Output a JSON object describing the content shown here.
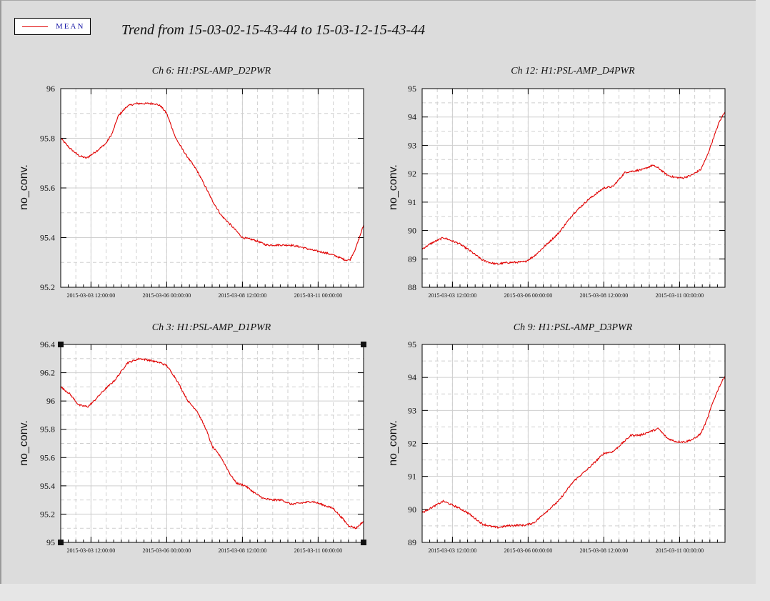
{
  "legend": {
    "label": "MEAN",
    "color": "#e00000"
  },
  "title": "Trend from 15-03-02-15-43-44 to 15-03-12-15-43-44",
  "chart_data": [
    {
      "type": "line",
      "title": "Ch 6: H1:PSL-AMP_D2PWR",
      "ylabel": "no_conv.",
      "ylim": [
        95.2,
        96.0
      ],
      "yticks": [
        "95.2",
        "95.4",
        "95.6",
        "95.8",
        "96"
      ],
      "xtick_labels": [
        "2015-03-03 12:00:00",
        "2015-03-06 00:00:00",
        "2015-03-08 12:00:00",
        "2015-03-11 00:00:00"
      ],
      "xtick_days": [
        1.0,
        3.5,
        6.0,
        8.5
      ],
      "grid": true,
      "series": [
        {
          "name": "MEAN",
          "color": "#e00000",
          "x": [
            0,
            0.3,
            0.6,
            0.85,
            1.2,
            1.5,
            1.7,
            1.9,
            2.2,
            2.5,
            2.8,
            3.1,
            3.3,
            3.5,
            3.8,
            4.1,
            4.5,
            4.8,
            5.0,
            5.3,
            5.7,
            6.0,
            6.4,
            6.8,
            7.2,
            7.6,
            8.0,
            8.3,
            8.7,
            9.0,
            9.2,
            9.4,
            9.55,
            9.75,
            10.0
          ],
          "y": [
            95.8,
            95.76,
            95.73,
            95.72,
            95.75,
            95.78,
            95.82,
            95.89,
            95.93,
            95.94,
            95.94,
            95.94,
            95.93,
            95.9,
            95.8,
            95.74,
            95.67,
            95.6,
            95.55,
            95.49,
            95.44,
            95.4,
            95.39,
            95.37,
            95.37,
            95.37,
            95.36,
            95.35,
            95.34,
            95.33,
            95.32,
            95.31,
            95.31,
            95.36,
            95.45
          ]
        }
      ]
    },
    {
      "type": "line",
      "title": "Ch 12: H1:PSL-AMP_D4PWR",
      "ylabel": "no_conv.",
      "ylim": [
        88,
        95
      ],
      "yticks": [
        "88",
        "89",
        "90",
        "91",
        "92",
        "93",
        "94",
        "95"
      ],
      "xtick_labels": [
        "2015-03-03 12:00:00",
        "2015-03-06 00:00:00",
        "2015-03-08 12:00:00",
        "2015-03-11 00:00:00"
      ],
      "xtick_days": [
        1.0,
        3.5,
        6.0,
        8.5
      ],
      "grid": true,
      "series": [
        {
          "name": "MEAN",
          "color": "#e00000",
          "x": [
            0,
            0.3,
            0.7,
            1.2,
            1.5,
            2.0,
            2.3,
            2.5,
            2.8,
            3.1,
            3.4,
            3.7,
            4.0,
            4.5,
            5.0,
            5.5,
            6.0,
            6.3,
            6.7,
            7.0,
            7.3,
            7.6,
            7.8,
            8.1,
            8.3,
            8.6,
            8.9,
            9.2,
            9.4,
            9.6,
            9.8,
            10.0
          ],
          "y": [
            89.35,
            89.55,
            89.75,
            89.55,
            89.35,
            88.95,
            88.85,
            88.82,
            88.87,
            88.88,
            88.9,
            89.1,
            89.4,
            89.9,
            90.6,
            91.1,
            91.5,
            91.55,
            92.05,
            92.1,
            92.15,
            92.3,
            92.2,
            91.95,
            91.88,
            91.85,
            91.95,
            92.15,
            92.6,
            93.2,
            93.8,
            94.2
          ]
        }
      ]
    },
    {
      "type": "line",
      "title": "Ch 3: H1:PSL-AMP_D1PWR",
      "ylabel": "no_conv.",
      "ylim": [
        95.0,
        96.4
      ],
      "yticks": [
        "95",
        "95.2",
        "95.4",
        "95.6",
        "95.8",
        "96",
        "96.2",
        "96.4"
      ],
      "xtick_labels": [
        "2015-03-03 12:00:00",
        "2015-03-06 00:00:00",
        "2015-03-08 12:00:00",
        "2015-03-11 00:00:00"
      ],
      "xtick_days": [
        1.0,
        3.5,
        6.0,
        8.5
      ],
      "grid": true,
      "series": [
        {
          "name": "MEAN",
          "color": "#e00000",
          "x": [
            0,
            0.3,
            0.6,
            0.9,
            1.1,
            1.4,
            1.8,
            2.2,
            2.6,
            2.9,
            3.1,
            3.3,
            3.5,
            3.8,
            4.0,
            4.2,
            4.5,
            4.8,
            5.0,
            5.3,
            5.6,
            5.8,
            6.1,
            6.4,
            6.7,
            7.0,
            7.3,
            7.6,
            8.0,
            8.3,
            8.6,
            9.0,
            9.3,
            9.5,
            9.75,
            10.0
          ],
          "y": [
            96.1,
            96.05,
            95.97,
            95.96,
            96.0,
            96.07,
            96.15,
            96.27,
            96.3,
            96.29,
            96.28,
            96.27,
            96.25,
            96.16,
            96.08,
            96.0,
            95.93,
            95.8,
            95.68,
            95.6,
            95.48,
            95.42,
            95.4,
            95.35,
            95.31,
            95.3,
            95.3,
            95.27,
            95.28,
            95.29,
            95.27,
            95.24,
            95.17,
            95.12,
            95.1,
            95.15
          ]
        }
      ]
    },
    {
      "type": "line",
      "title": "Ch 9: H1:PSL-AMP_D3PWR",
      "ylabel": "no_conv.",
      "ylim": [
        89,
        95
      ],
      "yticks": [
        "89",
        "90",
        "91",
        "92",
        "93",
        "94",
        "95"
      ],
      "xtick_labels": [
        "2015-03-03 12:00:00",
        "2015-03-06 00:00:00",
        "2015-03-08 12:00:00",
        "2015-03-11 00:00:00"
      ],
      "xtick_days": [
        1.0,
        3.5,
        6.0,
        8.5
      ],
      "grid": true,
      "series": [
        {
          "name": "MEAN",
          "color": "#e00000",
          "x": [
            0,
            0.3,
            0.7,
            1.2,
            1.5,
            2.0,
            2.3,
            2.5,
            2.8,
            3.1,
            3.4,
            3.7,
            4.0,
            4.5,
            5.0,
            5.5,
            6.0,
            6.3,
            6.6,
            6.9,
            7.2,
            7.5,
            7.8,
            8.1,
            8.4,
            8.7,
            9.0,
            9.2,
            9.4,
            9.6,
            9.8,
            10.0
          ],
          "y": [
            89.9,
            90.05,
            90.25,
            90.05,
            89.9,
            89.55,
            89.48,
            89.45,
            89.5,
            89.52,
            89.52,
            89.6,
            89.85,
            90.25,
            90.85,
            91.25,
            91.7,
            91.75,
            92.0,
            92.25,
            92.25,
            92.35,
            92.45,
            92.15,
            92.05,
            92.05,
            92.15,
            92.3,
            92.7,
            93.25,
            93.7,
            94.05
          ]
        }
      ]
    }
  ]
}
